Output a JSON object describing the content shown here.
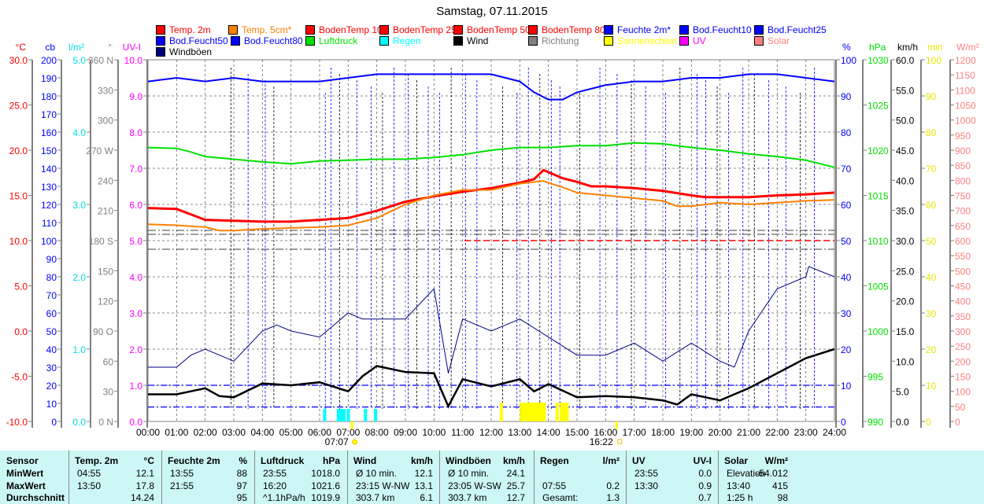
{
  "chart_data": {
    "type": "line",
    "title": "Samstag, 07.11.2015",
    "legend": [
      {
        "label": "Temp. 2m",
        "color": "#ff0000"
      },
      {
        "label": "Temp. 5cm*",
        "color": "#ff8000"
      },
      {
        "label": "BodenTemp 10",
        "color": "#ff0000"
      },
      {
        "label": "BodenTemp 25",
        "color": "#ff0000"
      },
      {
        "label": "BodenTemp 50",
        "color": "#ff0000"
      },
      {
        "label": "BodenTemp 80",
        "color": "#ff0000"
      },
      {
        "label": "Feuchte 2m*",
        "color": "#0000ff"
      },
      {
        "label": "Bod.Feucht10",
        "color": "#0000ff"
      },
      {
        "label": "Bod.Feucht25",
        "color": "#0000ff"
      },
      {
        "label": "Bod.Feucht50",
        "color": "#0000ff"
      },
      {
        "label": "Bod.Feucht80",
        "color": "#0000ff"
      },
      {
        "label": "Luftdruck",
        "color": "#00e000"
      },
      {
        "label": "Regen",
        "color": "#00ffff"
      },
      {
        "label": "Wind",
        "color": "#000000"
      },
      {
        "label": "Richtung",
        "color": "#808080"
      },
      {
        "label": "Sonnenschein",
        "color": "#ffff00"
      },
      {
        "label": "UV",
        "color": "#ff00ff"
      },
      {
        "label": "Solar",
        "color": "#ff8080"
      },
      {
        "label": "Windböen",
        "color": "#000080"
      }
    ],
    "x_labels": [
      "00:00",
      "01:00",
      "02:00",
      "03:00",
      "04:00",
      "05:00",
      "06:00",
      "07:00",
      "08:00",
      "09:00",
      "10:00",
      "11:00",
      "12:00",
      "13:00",
      "14:00",
      "15:00",
      "16:00",
      "17:00",
      "18:00",
      "19:00",
      "20:00",
      "21:00",
      "22:00",
      "23:00",
      "24:00"
    ],
    "sunrise": "07:07",
    "sunset": "16:22",
    "axes_left": [
      {
        "unit": "°C",
        "color": "#ff0000",
        "range": [
          -10,
          30
        ],
        "labels": [
          "30.0",
          "25.0",
          "20.0",
          "15.0",
          "10.0",
          "5.0",
          "0.0",
          "-5.0",
          "-10.0"
        ]
      },
      {
        "unit": "cb",
        "color": "#0000ff",
        "range": [
          0,
          200
        ],
        "labels": [
          "200",
          "190",
          "180",
          "170",
          "160",
          "150",
          "140",
          "130",
          "120",
          "110",
          "100",
          "90",
          "80",
          "70",
          "60",
          "50",
          "40",
          "30",
          "20",
          "10",
          "0"
        ]
      },
      {
        "unit": "l/m²",
        "color": "#00e0e0",
        "range": [
          0,
          5
        ],
        "labels": [
          "5.0",
          "4.0",
          "3.0",
          "2.0",
          "1.0",
          "0.0"
        ]
      },
      {
        "unit": "°",
        "color": "#808080",
        "range": [
          0,
          360
        ],
        "labels": [
          "360 N",
          "330",
          "300",
          "270 W",
          "240",
          "210",
          "180 S",
          "150",
          "120",
          "90 O",
          "60",
          "30",
          "0 N"
        ]
      },
      {
        "unit": "UV-I",
        "color": "#ff00ff",
        "range": [
          0,
          10
        ],
        "labels": [
          "10.0",
          "9.0",
          "8.0",
          "7.0",
          "6.0",
          "5.0",
          "4.0",
          "3.0",
          "2.0",
          "1.0",
          "0.0"
        ]
      }
    ],
    "axes_right": [
      {
        "unit": "%",
        "color": "#0000ff",
        "range": [
          0,
          100
        ],
        "labels": [
          "100",
          "90",
          "80",
          "70",
          "60",
          "50",
          "40",
          "30",
          "20",
          "10",
          "0"
        ]
      },
      {
        "unit": "hPa",
        "color": "#00e000",
        "range": [
          990,
          1030
        ],
        "labels": [
          "1030",
          "1025",
          "1020",
          "1015",
          "1010",
          "1005",
          "1000",
          "995",
          "990"
        ]
      },
      {
        "unit": "km/h",
        "color": "#000000",
        "range": [
          0,
          60
        ],
        "labels": [
          "60.0",
          "55.0",
          "50.0",
          "45.0",
          "40.0",
          "35.0",
          "30.0",
          "25.0",
          "20.0",
          "15.0",
          "10.0",
          "5.0",
          "0.0"
        ]
      },
      {
        "unit": "min",
        "color": "#e8e800",
        "range": [
          0,
          100
        ],
        "labels": [
          "100",
          "90",
          "80",
          "70",
          "60",
          "50",
          "40",
          "30",
          "20",
          "10",
          "0"
        ]
      },
      {
        "unit": "W/m²",
        "color": "#ff8080",
        "range": [
          0,
          1200
        ],
        "labels": [
          "1200",
          "1150",
          "1100",
          "1050",
          "1000",
          "950",
          "900",
          "850",
          "800",
          "750",
          "700",
          "650",
          "600",
          "550",
          "500",
          "450",
          "400",
          "350",
          "300",
          "250",
          "200",
          "150",
          "100",
          "50",
          "0"
        ]
      }
    ],
    "series": [
      {
        "name": "Temp. 2m",
        "axis": "°C",
        "color": "#ff0000",
        "width": 3,
        "x": [
          0,
          1,
          2,
          3,
          4,
          5,
          6,
          7,
          8,
          9,
          10,
          11,
          12,
          13,
          13.5,
          13.83,
          14.5,
          15,
          15.5,
          16,
          17,
          18,
          19,
          19.5,
          20,
          21,
          22,
          23,
          24
        ],
        "y": [
          13.6,
          13.5,
          12.3,
          12.2,
          12.1,
          12.1,
          12.3,
          12.5,
          13.3,
          14.3,
          14.9,
          15.4,
          15.8,
          16.4,
          16.8,
          17.8,
          16.9,
          16.5,
          16.0,
          16.0,
          15.8,
          15.5,
          15.0,
          14.8,
          14.8,
          14.8,
          15.0,
          15.1,
          15.3
        ]
      },
      {
        "name": "Temp. 5cm*",
        "axis": "°C",
        "color": "#ff8000",
        "width": 2,
        "x": [
          0,
          1,
          2,
          2.5,
          3,
          4,
          5,
          6,
          7,
          8,
          9,
          10,
          11,
          12,
          13,
          13.8,
          14.5,
          15,
          16,
          17,
          18,
          18.5,
          19,
          20,
          21,
          22,
          23,
          24
        ],
        "y": [
          11.8,
          11.7,
          11.5,
          11.1,
          11.1,
          11.3,
          11.4,
          11.5,
          11.7,
          12.5,
          14.0,
          15.0,
          15.6,
          15.6,
          16.3,
          16.6,
          15.9,
          15.3,
          15.0,
          14.7,
          14.4,
          13.8,
          13.8,
          14.2,
          14.0,
          14.2,
          14.4,
          14.5
        ]
      },
      {
        "name": "Feuchte 2m*",
        "axis": "%",
        "color": "#0000ff",
        "width": 2,
        "x": [
          0,
          1,
          2,
          3,
          4,
          5,
          6,
          7,
          8,
          9,
          10,
          11,
          12,
          13,
          13.5,
          14,
          14.5,
          15,
          16,
          17,
          18,
          19,
          20,
          21,
          22,
          23,
          24
        ],
        "y": [
          94,
          95,
          94,
          95,
          94,
          94,
          94,
          95,
          96,
          96,
          96,
          96,
          96,
          94,
          91,
          89,
          89,
          91,
          93,
          94,
          94,
          95,
          95,
          96,
          96,
          95,
          94
        ]
      },
      {
        "name": "Luftdruck",
        "axis": "hPa",
        "color": "#00e000",
        "width": 2,
        "x": [
          0,
          1,
          1.5,
          2,
          3,
          4,
          5,
          6,
          7,
          8,
          9,
          10,
          11,
          12,
          13,
          14,
          15,
          16,
          17,
          18,
          19,
          20,
          21,
          22,
          23,
          24
        ],
        "y": [
          1020.3,
          1020.2,
          1019.8,
          1019.3,
          1019.0,
          1018.7,
          1018.5,
          1018.8,
          1018.9,
          1019.0,
          1019.0,
          1019.2,
          1019.5,
          1020.0,
          1020.3,
          1020.3,
          1020.5,
          1020.5,
          1020.8,
          1020.7,
          1020.3,
          1020.0,
          1019.6,
          1019.3,
          1018.9,
          1018.1
        ]
      },
      {
        "name": "Wind",
        "axis": "km/h",
        "color": "#000000",
        "width": 2.5,
        "x": [
          0,
          1,
          2,
          2.5,
          3,
          4,
          5,
          6,
          7,
          7.5,
          8,
          9,
          10,
          10.5,
          11,
          12,
          13,
          13.5,
          14,
          15,
          16,
          17,
          18,
          18.5,
          19,
          20,
          21,
          22,
          23,
          24
        ],
        "y": [
          4.5,
          4.5,
          5.5,
          4.2,
          4.0,
          6.3,
          6.0,
          6.5,
          5.0,
          7.5,
          9.2,
          8.2,
          8.0,
          2.5,
          7.0,
          5.8,
          7.0,
          5.0,
          6.2,
          4.0,
          4.2,
          4.0,
          3.5,
          2.8,
          4.5,
          3.5,
          5.5,
          8.0,
          10.5,
          12.0
        ]
      },
      {
        "name": "Windböen",
        "axis": "km/h",
        "color": "#000080",
        "width": 1,
        "x": [
          0,
          1,
          1.5,
          2,
          3,
          4,
          4.5,
          5,
          6,
          7,
          7.5,
          8,
          9,
          10,
          10.5,
          11,
          12,
          13,
          14,
          15,
          16,
          17,
          18,
          19,
          20,
          20.5,
          21,
          22,
          23,
          23.1,
          24
        ],
        "y": [
          9,
          9,
          11,
          12,
          10,
          15,
          16,
          15,
          14,
          18,
          17,
          17,
          17,
          22,
          8,
          17,
          15,
          17,
          14,
          11,
          11,
          13,
          10,
          13,
          10,
          9,
          15,
          22,
          24,
          25.7,
          24
        ]
      }
    ],
    "rain_hours": [
      6.12,
      6.6,
      6.7,
      6.8,
      6.95,
      7.55,
      7.9
    ],
    "sunshine_hours": [
      12.3,
      13.0,
      13.1,
      13.2,
      13.3,
      13.4,
      13.5,
      13.6,
      13.7,
      13.8,
      14.25,
      14.4,
      14.5,
      14.6
    ],
    "soil_temp_level": 10,
    "bod_feucht_levels": [
      10,
      4
    ]
  },
  "table": {
    "rows": [
      "Sensor",
      "MinWert",
      "MaxWert",
      "Durchschnitt"
    ],
    "columns": [
      {
        "header": "Temp. 2m",
        "unit": "°C",
        "cells": [
          [
            "04:55",
            "12.1"
          ],
          [
            "13:50",
            "17.8"
          ],
          [
            "",
            "14.24"
          ]
        ]
      },
      {
        "header": "Feuchte 2m",
        "unit": "%",
        "cells": [
          [
            "13:55",
            "88"
          ],
          [
            "21:55",
            "97"
          ],
          [
            "",
            "95"
          ]
        ]
      },
      {
        "header": "Luftdruck",
        "unit": "hPa",
        "cells": [
          [
            "23:55",
            "1018.0"
          ],
          [
            "16:20",
            "1021.6"
          ],
          [
            "^1.1hPa/h",
            "1019.9"
          ]
        ]
      },
      {
        "header": "Wind",
        "unit": "km/h",
        "cells": [
          [
            "Ø 10 min.",
            "12.1"
          ],
          [
            "23:15  W-NW",
            "13.1"
          ],
          [
            "303.7 km",
            "6.1"
          ]
        ]
      },
      {
        "header": "Windböen",
        "unit": "km/h",
        "cells": [
          [
            "Ø 10 min.",
            "24.1"
          ],
          [
            "23:05  W-SW",
            "25.7"
          ],
          [
            "303.7 km",
            "12.7"
          ]
        ]
      },
      {
        "header": "Regen",
        "unit": "l/m²",
        "cells": [
          [
            "",
            ""
          ],
          [
            "07:55",
            "0.2"
          ],
          [
            "Gesamt:",
            "1.3"
          ]
        ]
      },
      {
        "header": "UV",
        "unit": "UV-I",
        "cells": [
          [
            "23:55",
            "0.0"
          ],
          [
            "13:30",
            "0.9"
          ],
          [
            "",
            "0.7"
          ]
        ]
      },
      {
        "header": "Solar",
        "unit": "W/m²",
        "cells": [
          [
            "Elevation",
            "-54.012"
          ],
          [
            "13:40",
            "415"
          ],
          [
            "1:25 h",
            "98"
          ]
        ]
      }
    ]
  }
}
